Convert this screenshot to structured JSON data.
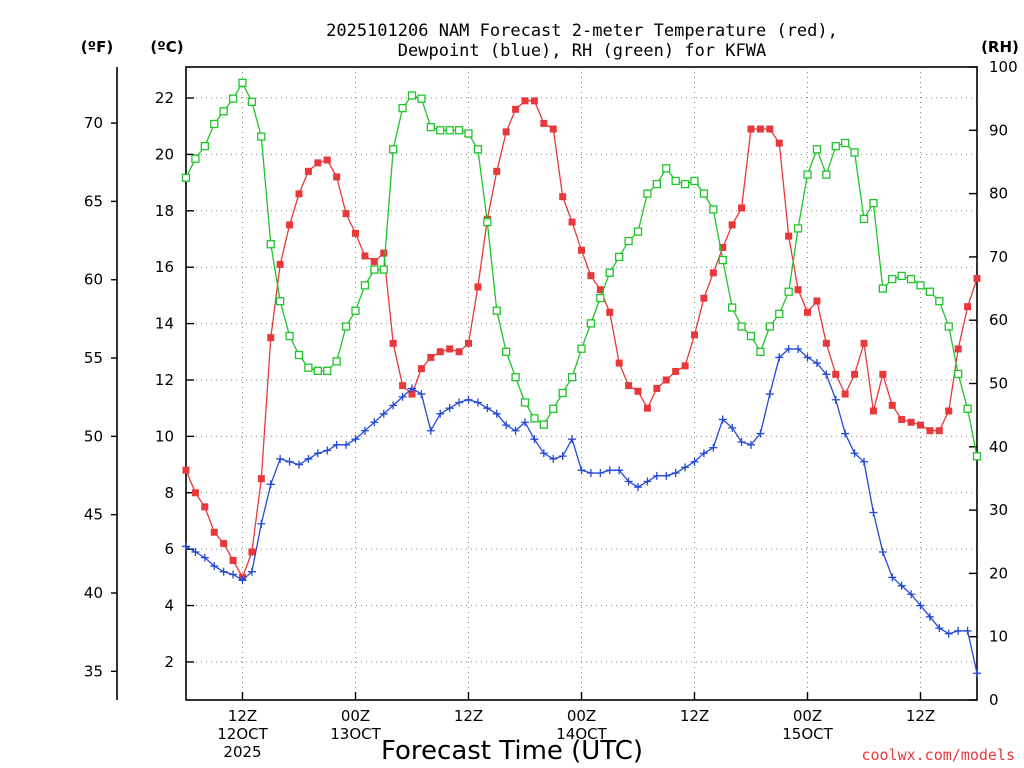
{
  "chart_data": {
    "type": "line",
    "title_line1": "2025101206 NAM Forecast 2-meter Temperature (red),",
    "title_line2": "Dewpoint (blue), RH (green) for KFWA",
    "xlabel": "Forecast Time (UTC)",
    "credit": "coolwx.com/models",
    "units": {
      "left_f": "(ºF)",
      "left_c": "(ºC)",
      "right": "(RH)"
    },
    "y_celsius": {
      "lim": [
        0.65,
        23.1
      ],
      "ticks": [
        2,
        4,
        6,
        8,
        10,
        12,
        14,
        16,
        18,
        20,
        22
      ]
    },
    "y_fahrenheit": {
      "ticks": [
        35,
        40,
        45,
        50,
        55,
        60,
        65,
        70
      ]
    },
    "y_rh": {
      "lim": [
        0,
        100
      ],
      "ticks": [
        0,
        10,
        20,
        30,
        40,
        50,
        60,
        70,
        80,
        90,
        100
      ]
    },
    "x_hours": {
      "lim": [
        6,
        90
      ],
      "step": 1
    },
    "x_ticks": [
      {
        "hour": 12,
        "lines": [
          "12Z",
          "12OCT",
          "2025"
        ]
      },
      {
        "hour": 24,
        "lines": [
          "00Z",
          "13OCT"
        ]
      },
      {
        "hour": 36,
        "lines": [
          "12Z"
        ]
      },
      {
        "hour": 48,
        "lines": [
          "00Z",
          "14OCT"
        ]
      },
      {
        "hour": 60,
        "lines": [
          "12Z"
        ]
      },
      {
        "hour": 72,
        "lines": [
          "00Z",
          "15OCT"
        ]
      },
      {
        "hour": 84,
        "lines": [
          "12Z"
        ]
      }
    ],
    "series": [
      {
        "key": "temperature",
        "unit": "C",
        "color": "#e8383b",
        "marker": "filled-square",
        "values": [
          8.8,
          8.0,
          7.5,
          6.6,
          6.2,
          5.6,
          5.0,
          5.9,
          8.5,
          13.5,
          16.1,
          17.5,
          18.6,
          19.4,
          19.7,
          19.8,
          19.2,
          17.9,
          17.2,
          16.4,
          16.2,
          16.5,
          13.3,
          11.8,
          11.5,
          12.4,
          12.8,
          13.0,
          13.1,
          13.0,
          13.3,
          15.3,
          17.7,
          19.4,
          20.8,
          21.6,
          21.9,
          21.9,
          21.1,
          20.9,
          18.5,
          17.6,
          16.6,
          15.7,
          15.2,
          14.4,
          12.6,
          11.8,
          11.6,
          11.0,
          11.7,
          12.0,
          12.3,
          12.5,
          13.6,
          14.9,
          15.8,
          16.7,
          17.5,
          18.1,
          20.9,
          20.9,
          20.9,
          20.4,
          17.1,
          15.2,
          14.4,
          14.8,
          13.3,
          12.2,
          11.5,
          12.2,
          13.3,
          10.9,
          12.2,
          11.1,
          10.6,
          10.5,
          10.4,
          10.2,
          10.2,
          10.9,
          13.1,
          14.6,
          15.6
        ]
      },
      {
        "key": "dewpoint",
        "unit": "C",
        "color": "#2449d6",
        "marker": "plus",
        "values": [
          6.1,
          5.9,
          5.7,
          5.4,
          5.2,
          5.1,
          4.9,
          5.2,
          6.9,
          8.3,
          9.2,
          9.1,
          9.0,
          9.2,
          9.4,
          9.5,
          9.7,
          9.7,
          9.9,
          10.2,
          10.5,
          10.8,
          11.1,
          11.4,
          11.7,
          11.5,
          10.2,
          10.8,
          11.0,
          11.2,
          11.3,
          11.2,
          11.0,
          10.8,
          10.4,
          10.2,
          10.5,
          9.9,
          9.4,
          9.2,
          9.3,
          9.9,
          8.8,
          8.7,
          8.7,
          8.8,
          8.8,
          8.4,
          8.2,
          8.4,
          8.6,
          8.6,
          8.7,
          8.9,
          9.1,
          9.4,
          9.6,
          10.6,
          10.3,
          9.8,
          9.7,
          10.1,
          11.5,
          12.8,
          13.1,
          13.1,
          12.8,
          12.6,
          12.2,
          11.3,
          10.1,
          9.4,
          9.1,
          7.3,
          5.9,
          5.0,
          4.7,
          4.4,
          4.0,
          3.6,
          3.2,
          3.0,
          3.1,
          3.1,
          1.6
        ]
      },
      {
        "key": "rh",
        "unit": "%",
        "color": "#1fc42a",
        "marker": "open-square",
        "values": [
          82.5,
          85.5,
          87.5,
          91.0,
          93.0,
          95.0,
          97.5,
          94.5,
          89.0,
          72.0,
          63.0,
          57.5,
          54.5,
          52.5,
          52.0,
          52.0,
          53.5,
          59.0,
          61.5,
          65.5,
          68.0,
          68.0,
          87.0,
          93.5,
          95.5,
          95.0,
          90.5,
          90.0,
          90.0,
          90.0,
          89.5,
          87.0,
          75.5,
          61.5,
          55.0,
          51.0,
          47.0,
          44.5,
          43.5,
          46.0,
          48.5,
          51.0,
          55.5,
          59.5,
          63.5,
          67.5,
          70.0,
          72.5,
          74.0,
          80.0,
          81.5,
          84.0,
          82.0,
          81.5,
          82.0,
          80.0,
          77.5,
          69.5,
          62.0,
          59.0,
          57.5,
          55.0,
          59.0,
          61.0,
          64.5,
          74.5,
          83.0,
          87.0,
          83.0,
          87.5,
          88.0,
          86.5,
          76.0,
          78.5,
          65.0,
          66.5,
          67.0,
          66.5,
          65.5,
          64.5,
          63.0,
          59.0,
          51.5,
          46.0,
          38.5
        ]
      }
    ]
  }
}
